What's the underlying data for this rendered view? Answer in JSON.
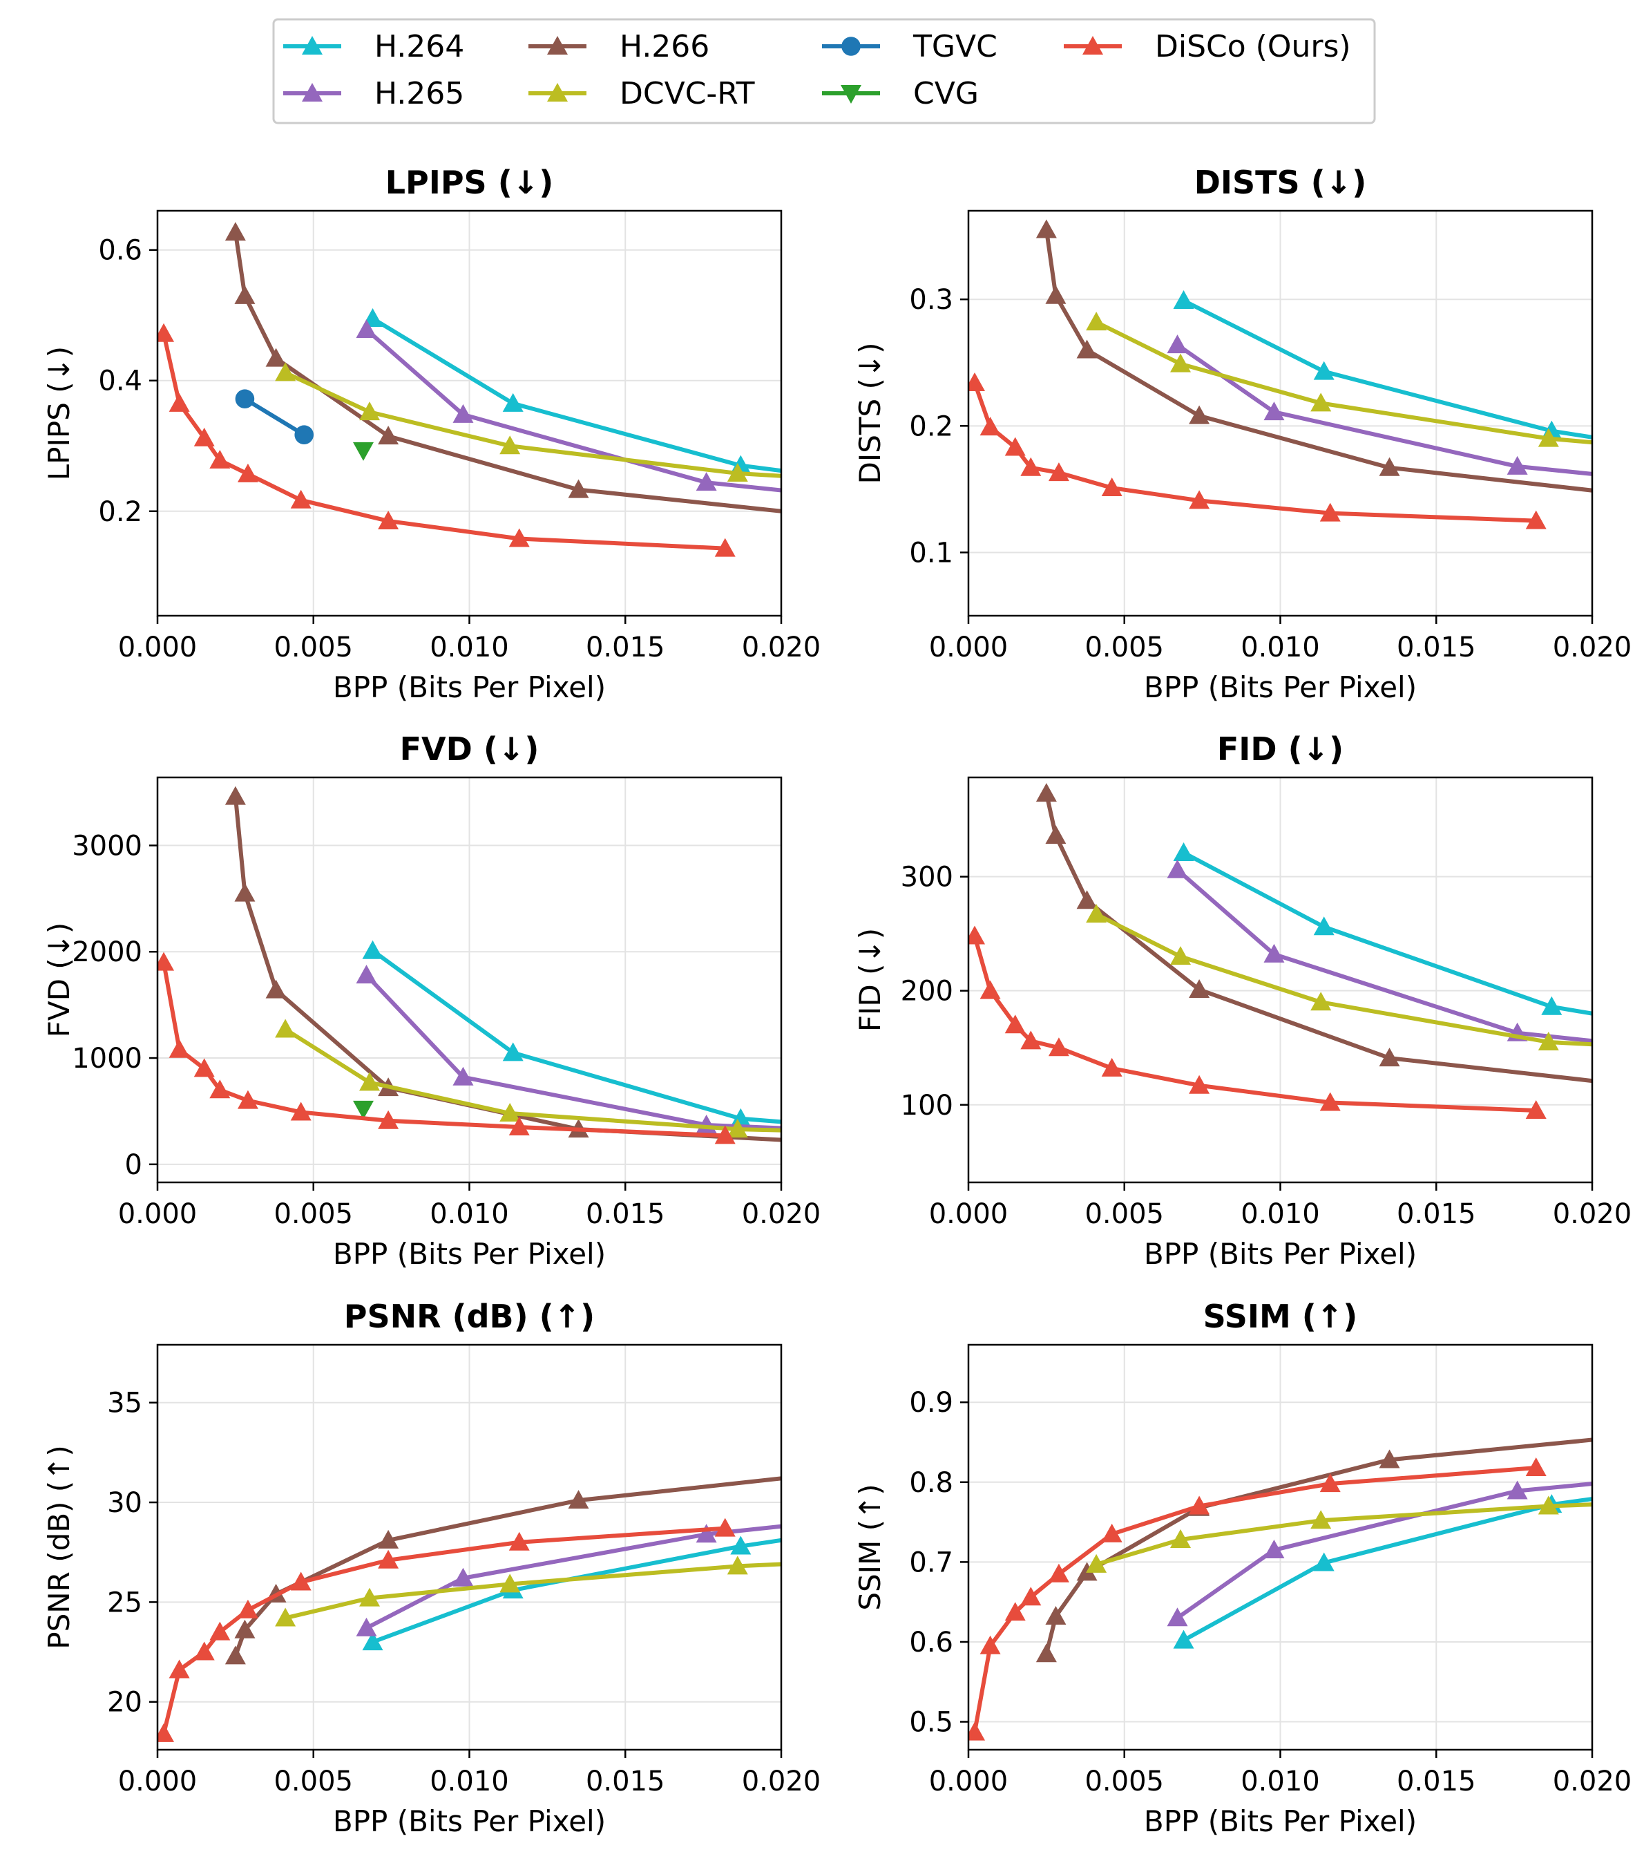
{
  "legend": {
    "placement": "top-center",
    "entries": [
      {
        "name": "H.264",
        "color": "#17becf",
        "marker": "triangle-up"
      },
      {
        "name": "H.265",
        "color": "#9467bd",
        "marker": "triangle-up"
      },
      {
        "name": "H.266",
        "color": "#8c564b",
        "marker": "triangle-up"
      },
      {
        "name": "DCVC-RT",
        "color": "#bcbd22",
        "marker": "triangle-up"
      },
      {
        "name": "TGVC",
        "color": "#1f77b4",
        "marker": "circle"
      },
      {
        "name": "CVG",
        "color": "#2ca02c",
        "marker": "triangle-down"
      },
      {
        "name": "DiSCo (Ours)",
        "color": "#e74c3c",
        "marker": "triangle-up"
      }
    ]
  },
  "chart_data": [
    {
      "type": "line",
      "title": "LPIPS (↓)",
      "xlabel": "BPP (Bits Per Pixel)",
      "ylabel": "LPIPS (↓)",
      "xlim": [
        0,
        0.02
      ],
      "ylim": [
        0.04,
        0.66
      ],
      "grid": true,
      "xticks": [
        0,
        0.005,
        0.01,
        0.015,
        0.02
      ],
      "xtick_labels": [
        "0.000",
        "0.005",
        "0.010",
        "0.015",
        "0.020"
      ],
      "yticks": [
        0.2,
        0.4,
        0.6
      ],
      "ytick_labels": [
        "0.2",
        "0.4",
        "0.6"
      ],
      "series": [
        {
          "name": "H.264",
          "x": [
            0.0069,
            0.0114,
            0.0187,
            0.02
          ],
          "y": [
            0.495,
            0.365,
            0.27,
            0.262
          ],
          "markers": 3
        },
        {
          "name": "H.265",
          "x": [
            0.0067,
            0.0098,
            0.0176,
            0.02
          ],
          "y": [
            0.478,
            0.348,
            0.244,
            0.232
          ],
          "markers": 3
        },
        {
          "name": "H.266",
          "x": [
            0.0025,
            0.0028,
            0.0038,
            0.0074,
            0.0135,
            0.02
          ],
          "y": [
            0.627,
            0.53,
            0.434,
            0.315,
            0.233,
            0.2
          ],
          "markers": 5
        },
        {
          "name": "DCVC-RT",
          "x": [
            0.0041,
            0.0068,
            0.0113,
            0.0186,
            0.02
          ],
          "y": [
            0.412,
            0.352,
            0.3,
            0.258,
            0.254
          ],
          "markers": 4
        },
        {
          "name": "TGVC",
          "x": [
            0.0028,
            0.0047
          ],
          "y": [
            0.372,
            0.317
          ]
        },
        {
          "name": "CVG",
          "x": [
            0.0066
          ],
          "y": [
            0.293
          ]
        },
        {
          "name": "DiSCo (Ours)",
          "x": [
            0.0002,
            0.0007,
            0.0015,
            0.002,
            0.0029,
            0.0046,
            0.0074,
            0.0116,
            0.0182
          ],
          "y": [
            0.472,
            0.365,
            0.312,
            0.278,
            0.257,
            0.217,
            0.185,
            0.158,
            0.143
          ]
        }
      ]
    },
    {
      "type": "line",
      "title": "DISTS (↓)",
      "xlabel": "BPP (Bits Per Pixel)",
      "ylabel": "DISTS (↓)",
      "xlim": [
        0,
        0.02
      ],
      "ylim": [
        0.05,
        0.37
      ],
      "grid": true,
      "xticks": [
        0,
        0.005,
        0.01,
        0.015,
        0.02
      ],
      "xtick_labels": [
        "0.000",
        "0.005",
        "0.010",
        "0.015",
        "0.020"
      ],
      "yticks": [
        0.1,
        0.2,
        0.3
      ],
      "ytick_labels": [
        "0.1",
        "0.2",
        "0.3"
      ],
      "series": [
        {
          "name": "H.264",
          "x": [
            0.0069,
            0.0114,
            0.0187,
            0.02
          ],
          "y": [
            0.299,
            0.243,
            0.196,
            0.191
          ],
          "markers": 3
        },
        {
          "name": "H.265",
          "x": [
            0.0067,
            0.0098,
            0.0176,
            0.02
          ],
          "y": [
            0.264,
            0.211,
            0.168,
            0.162
          ],
          "markers": 3
        },
        {
          "name": "H.266",
          "x": [
            0.0025,
            0.0028,
            0.0038,
            0.0074,
            0.0135,
            0.02
          ],
          "y": [
            0.355,
            0.303,
            0.26,
            0.208,
            0.167,
            0.149
          ],
          "markers": 5
        },
        {
          "name": "DCVC-RT",
          "x": [
            0.0041,
            0.0068,
            0.0113,
            0.0186,
            0.02
          ],
          "y": [
            0.282,
            0.249,
            0.218,
            0.19,
            0.187
          ],
          "markers": 4
        },
        {
          "name": "DiSCo (Ours)",
          "x": [
            0.0002,
            0.0007,
            0.0015,
            0.002,
            0.0029,
            0.0046,
            0.0074,
            0.0116,
            0.0182
          ],
          "y": [
            0.234,
            0.199,
            0.183,
            0.167,
            0.163,
            0.151,
            0.141,
            0.131,
            0.125
          ]
        }
      ]
    },
    {
      "type": "line",
      "title": "FVD (↓)",
      "xlabel": "BPP (Bits Per Pixel)",
      "ylabel": "FVD (↓)",
      "xlim": [
        0,
        0.02
      ],
      "ylim": [
        -170,
        3640
      ],
      "grid": true,
      "xticks": [
        0,
        0.005,
        0.01,
        0.015,
        0.02
      ],
      "xtick_labels": [
        "0.000",
        "0.005",
        "0.010",
        "0.015",
        "0.020"
      ],
      "yticks": [
        0,
        1000,
        2000,
        3000
      ],
      "ytick_labels": [
        "0",
        "1000",
        "2000",
        "3000"
      ],
      "series": [
        {
          "name": "H.264",
          "x": [
            0.0069,
            0.0114,
            0.0187,
            0.02
          ],
          "y": [
            2010,
            1050,
            430,
            400
          ],
          "markers": 3
        },
        {
          "name": "H.265",
          "x": [
            0.0067,
            0.0098,
            0.0176,
            0.02
          ],
          "y": [
            1780,
            820,
            370,
            340
          ],
          "markers": 3
        },
        {
          "name": "H.266",
          "x": [
            0.0025,
            0.0028,
            0.0038,
            0.0074,
            0.0135,
            0.02
          ],
          "y": [
            3460,
            2550,
            1640,
            720,
            330,
            230
          ],
          "markers": 5
        },
        {
          "name": "DCVC-RT",
          "x": [
            0.0041,
            0.0068,
            0.0113,
            0.0186,
            0.02
          ],
          "y": [
            1270,
            770,
            480,
            330,
            320
          ],
          "markers": 4
        },
        {
          "name": "CVG",
          "x": [
            0.0066
          ],
          "y": [
            520
          ]
        },
        {
          "name": "DiSCo (Ours)",
          "x": [
            0.0002,
            0.0007,
            0.0015,
            0.002,
            0.0029,
            0.0046,
            0.0074,
            0.0116,
            0.0182
          ],
          "y": [
            1900,
            1080,
            900,
            700,
            600,
            490,
            410,
            350,
            270
          ]
        }
      ]
    },
    {
      "type": "line",
      "title": "FID (↓)",
      "xlabel": "BPP (Bits Per Pixel)",
      "ylabel": "FID (↓)",
      "xlim": [
        0,
        0.02
      ],
      "ylim": [
        32,
        387
      ],
      "grid": true,
      "xticks": [
        0,
        0.005,
        0.01,
        0.015,
        0.02
      ],
      "xtick_labels": [
        "0.000",
        "0.005",
        "0.010",
        "0.015",
        "0.020"
      ],
      "yticks": [
        100,
        200,
        300
      ],
      "ytick_labels": [
        "100",
        "200",
        "300"
      ],
      "series": [
        {
          "name": "H.264",
          "x": [
            0.0069,
            0.0114,
            0.0187,
            0.02
          ],
          "y": [
            321,
            256,
            186,
            180
          ],
          "markers": 3
        },
        {
          "name": "H.265",
          "x": [
            0.0067,
            0.0098,
            0.0176,
            0.02
          ],
          "y": [
            306,
            232,
            163,
            156
          ],
          "markers": 3
        },
        {
          "name": "H.266",
          "x": [
            0.0025,
            0.0028,
            0.0038,
            0.0074,
            0.0135,
            0.02
          ],
          "y": [
            373,
            336,
            279,
            201,
            141,
            121
          ],
          "markers": 5
        },
        {
          "name": "DCVC-RT",
          "x": [
            0.0041,
            0.0068,
            0.0113,
            0.0186,
            0.02
          ],
          "y": [
            267,
            230,
            190,
            155,
            153
          ],
          "markers": 4
        },
        {
          "name": "DiSCo (Ours)",
          "x": [
            0.0002,
            0.0007,
            0.0015,
            0.002,
            0.0029,
            0.0046,
            0.0074,
            0.0116,
            0.0182
          ],
          "y": [
            248,
            200,
            170,
            156,
            150,
            132,
            117,
            102,
            95
          ]
        }
      ]
    },
    {
      "type": "line",
      "title": "PSNR (dB) (↑)",
      "xlabel": "BPP (Bits Per Pixel)",
      "ylabel": "PSNR (dB) (↑)",
      "xlim": [
        0,
        0.02
      ],
      "ylim": [
        17.6,
        37.9
      ],
      "grid": true,
      "xticks": [
        0,
        0.005,
        0.01,
        0.015,
        0.02
      ],
      "xtick_labels": [
        "0.000",
        "0.005",
        "0.010",
        "0.015",
        "0.020"
      ],
      "yticks": [
        20,
        25,
        30,
        35
      ],
      "ytick_labels": [
        "20",
        "25",
        "30",
        "35"
      ],
      "series": [
        {
          "name": "H.264",
          "x": [
            0.0069,
            0.0114,
            0.0187,
            0.02
          ],
          "y": [
            23.0,
            25.6,
            27.8,
            28.1
          ],
          "markers": 3
        },
        {
          "name": "H.265",
          "x": [
            0.0067,
            0.0098,
            0.0176,
            0.02
          ],
          "y": [
            23.7,
            26.2,
            28.4,
            28.8
          ],
          "markers": 3
        },
        {
          "name": "H.266",
          "x": [
            0.0025,
            0.0028,
            0.0038,
            0.0074,
            0.0135,
            0.02
          ],
          "y": [
            22.3,
            23.6,
            25.4,
            28.1,
            30.1,
            31.2
          ],
          "markers": 5
        },
        {
          "name": "DCVC-RT",
          "x": [
            0.0041,
            0.0068,
            0.0113,
            0.0186,
            0.02
          ],
          "y": [
            24.2,
            25.2,
            25.9,
            26.8,
            26.9
          ],
          "markers": 4
        },
        {
          "name": "DiSCo (Ours)",
          "x": [
            0.0002,
            0.0007,
            0.0015,
            0.002,
            0.0029,
            0.0046,
            0.0074,
            0.0116,
            0.0182
          ],
          "y": [
            18.4,
            21.6,
            22.5,
            23.5,
            24.6,
            26.0,
            27.1,
            28.0,
            28.7
          ]
        }
      ]
    },
    {
      "type": "line",
      "title": "SSIM (↑)",
      "xlabel": "BPP (Bits Per Pixel)",
      "ylabel": "SSIM (↑)",
      "xlim": [
        0,
        0.02
      ],
      "ylim": [
        0.465,
        0.972
      ],
      "grid": true,
      "xticks": [
        0,
        0.005,
        0.01,
        0.015,
        0.02
      ],
      "xtick_labels": [
        "0.000",
        "0.005",
        "0.010",
        "0.015",
        "0.020"
      ],
      "yticks": [
        0.5,
        0.6,
        0.7,
        0.8,
        0.9
      ],
      "ytick_labels": [
        "0.5",
        "0.6",
        "0.7",
        "0.8",
        "0.9"
      ],
      "series": [
        {
          "name": "H.264",
          "x": [
            0.0069,
            0.0114,
            0.0187,
            0.02
          ],
          "y": [
            0.602,
            0.699,
            0.772,
            0.779
          ],
          "markers": 3
        },
        {
          "name": "H.265",
          "x": [
            0.0067,
            0.0098,
            0.0176,
            0.02
          ],
          "y": [
            0.63,
            0.715,
            0.789,
            0.798
          ],
          "markers": 3
        },
        {
          "name": "H.266",
          "x": [
            0.0025,
            0.0028,
            0.0038,
            0.0074,
            0.0135,
            0.02
          ],
          "y": [
            0.585,
            0.632,
            0.687,
            0.768,
            0.828,
            0.853
          ],
          "markers": 5
        },
        {
          "name": "DCVC-RT",
          "x": [
            0.0041,
            0.0068,
            0.0113,
            0.0186,
            0.02
          ],
          "y": [
            0.697,
            0.728,
            0.752,
            0.77,
            0.772
          ],
          "markers": 4
        },
        {
          "name": "DiSCo (Ours)",
          "x": [
            0.0002,
            0.0007,
            0.0015,
            0.002,
            0.0029,
            0.0046,
            0.0074,
            0.0116,
            0.0182
          ],
          "y": [
            0.487,
            0.595,
            0.637,
            0.656,
            0.685,
            0.735,
            0.77,
            0.798,
            0.818
          ]
        }
      ]
    }
  ]
}
